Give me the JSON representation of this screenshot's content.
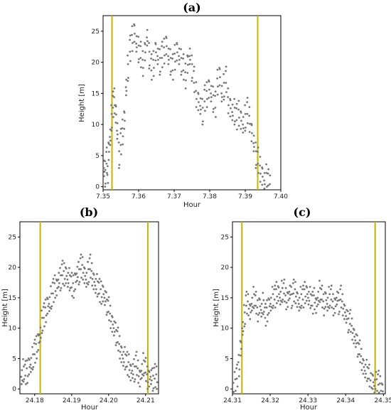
{
  "chart_data": [
    {
      "panel": "(a)",
      "type": "scatter",
      "xlabel": "Hour",
      "ylabel": "Height [m]",
      "xlim": [
        7.35,
        7.4
      ],
      "ylim": [
        -0.5,
        27.5
      ],
      "xticks": [
        7.35,
        7.36,
        7.37,
        7.38,
        7.39,
        7.4
      ],
      "xtick_labels": [
        "7.35",
        "7.36",
        "7.37",
        "7.38",
        "7.39",
        "7.40"
      ],
      "yticks": [
        0,
        5,
        10,
        15,
        20,
        25
      ],
      "ytick_labels": [
        "0",
        "5",
        "10",
        "15",
        "20",
        "25"
      ],
      "grid": false,
      "point_color": "#777777",
      "vlines": [
        7.3525,
        7.3935
      ],
      "vline_color": "#c8b400",
      "x": [
        7.3503,
        7.3506,
        7.351,
        7.3513,
        7.3516,
        7.352,
        7.3524,
        7.3528,
        7.3532,
        7.3536,
        7.354,
        7.3545,
        7.355,
        7.3555,
        7.356,
        7.3565,
        7.357,
        7.3576,
        7.3582,
        7.3588,
        7.3594,
        7.36,
        7.3606,
        7.3612,
        7.3618,
        7.3624,
        7.363,
        7.3636,
        7.3642,
        7.3648,
        7.3654,
        7.366,
        7.3666,
        7.3672,
        7.3678,
        7.3684,
        7.369,
        7.3696,
        7.3702,
        7.3708,
        7.3714,
        7.372,
        7.3726,
        7.3732,
        7.3738,
        7.3744,
        7.375,
        7.3756,
        7.3762,
        7.3768,
        7.3774,
        7.378,
        7.3786,
        7.3792,
        7.3798,
        7.3804,
        7.381,
        7.3816,
        7.3822,
        7.3828,
        7.3834,
        7.384,
        7.3846,
        7.3852,
        7.3858,
        7.3864,
        7.387,
        7.3876,
        7.3882,
        7.3888,
        7.3894,
        7.39,
        7.3906,
        7.3912,
        7.3918,
        7.3924,
        7.393,
        7.3936,
        7.3942,
        7.3948,
        7.3954,
        7.396,
        7.3965,
        7.397
      ],
      "y": [
        3,
        2,
        4,
        1.5,
        6,
        8,
        11,
        13,
        14,
        12,
        9,
        5,
        7,
        9,
        11,
        16,
        19,
        22,
        24,
        25,
        23,
        22,
        21,
        20,
        22,
        24,
        21,
        19,
        20,
        22,
        21,
        20,
        21,
        22,
        23,
        21,
        20,
        19,
        21,
        22,
        21,
        20,
        19,
        18,
        20,
        21,
        19,
        17,
        15,
        14,
        13,
        12,
        14,
        15,
        16,
        15,
        14,
        13,
        17,
        18,
        15,
        16,
        17,
        14,
        13,
        12,
        12,
        11,
        12,
        11,
        10,
        11,
        12,
        11,
        9,
        7,
        5,
        4,
        3,
        2,
        1,
        1.5,
        0.5,
        0
      ],
      "scatter_offsets": [
        0,
        -1.3,
        1.2,
        -0.6,
        2.1,
        -2.0,
        0.7,
        -1.5,
        1.6,
        -0.3,
        2.3,
        -1.8,
        0.4,
        1.8,
        -2.2,
        -0.9,
        1.1,
        -1.7,
        0.9,
        -0.4
      ]
    },
    {
      "panel": "(b)",
      "type": "scatter",
      "xlabel": "Hour",
      "ylabel": "Height [m]",
      "xlim": [
        24.176,
        24.2135
      ],
      "ylim": [
        -0.8,
        27.5
      ],
      "xticks": [
        24.18,
        24.19,
        24.2,
        24.21
      ],
      "xtick_labels": [
        "24.18",
        "24.19",
        "24.20",
        "24.21"
      ],
      "yticks": [
        0,
        5,
        10,
        15,
        20,
        25
      ],
      "ytick_labels": [
        "0",
        "5",
        "10",
        "15",
        "20",
        "25"
      ],
      "grid": false,
      "point_color": "#777777",
      "vlines": [
        24.1815,
        24.2106
      ],
      "vline_color": "#c8b400",
      "x": [
        24.1765,
        24.177,
        24.1775,
        24.178,
        24.1785,
        24.179,
        24.1795,
        24.18,
        24.1805,
        24.181,
        24.1815,
        24.182,
        24.1825,
        24.183,
        24.1835,
        24.184,
        24.1845,
        24.185,
        24.1855,
        24.186,
        24.1865,
        24.187,
        24.1875,
        24.188,
        24.1885,
        24.189,
        24.1895,
        24.19,
        24.1905,
        24.191,
        24.1915,
        24.192,
        24.1925,
        24.193,
        24.1935,
        24.194,
        24.1945,
        24.195,
        24.1955,
        24.196,
        24.1965,
        24.197,
        24.1975,
        24.198,
        24.1985,
        24.199,
        24.1995,
        24.2,
        24.2005,
        24.201,
        24.2015,
        24.202,
        24.2025,
        24.203,
        24.2035,
        24.204,
        24.2045,
        24.205,
        24.2055,
        24.206,
        24.2065,
        24.207,
        24.2075,
        24.208,
        24.2085,
        24.209,
        24.2095,
        24.21,
        24.2105,
        24.211,
        24.2115,
        24.212,
        24.2125,
        24.213
      ],
      "y": [
        2,
        3,
        2.5,
        3,
        4,
        4,
        5,
        6,
        7,
        8,
        9,
        11,
        12,
        13,
        14,
        14,
        15,
        16,
        17,
        17,
        18,
        18,
        19,
        19,
        19,
        18,
        18,
        17,
        17,
        18,
        19,
        19,
        20,
        20,
        19,
        18,
        19,
        20,
        19,
        18,
        17,
        17,
        16,
        16,
        16,
        15,
        14,
        13,
        12,
        11,
        10,
        9,
        8,
        7,
        6,
        5,
        5,
        4,
        4,
        3,
        3,
        3,
        4,
        3,
        2,
        3,
        4,
        3,
        2,
        2,
        2,
        1.5,
        2,
        2
      ],
      "scatter_offsets": [
        0,
        -1.2,
        1.1,
        -0.6,
        1.9,
        -1.8,
        0.7,
        -1.4,
        1.5,
        -0.3,
        2.1,
        -1.7,
        0.4,
        1.7,
        -2.0,
        -0.9,
        1.0,
        -1.6,
        0.8,
        -0.4
      ]
    },
    {
      "panel": "(c)",
      "type": "scatter",
      "xlabel": "Hour",
      "ylabel": "Height [m]",
      "xlim": [
        24.31,
        24.3505
      ],
      "ylim": [
        -0.8,
        27.5
      ],
      "xticks": [
        24.31,
        24.32,
        24.33,
        24.34,
        24.35
      ],
      "xtick_labels": [
        "24.31",
        "24.32",
        "24.33",
        "24.34",
        "24.35"
      ],
      "yticks": [
        0,
        5,
        10,
        15,
        20,
        25
      ],
      "ytick_labels": [
        "0",
        "5",
        "10",
        "15",
        "20",
        "25"
      ],
      "grid": false,
      "point_color": "#777777",
      "vlines": [
        24.3125,
        24.3478
      ],
      "vline_color": "#c8b400",
      "x": [
        24.3102,
        24.3107,
        24.3112,
        24.3117,
        24.3122,
        24.3127,
        24.3132,
        24.3137,
        24.3142,
        24.3147,
        24.3152,
        24.3157,
        24.3162,
        24.3167,
        24.3172,
        24.3177,
        24.3182,
        24.3187,
        24.3192,
        24.3197,
        24.3202,
        24.3207,
        24.3212,
        24.3217,
        24.3222,
        24.3227,
        24.3232,
        24.3237,
        24.3242,
        24.3247,
        24.3252,
        24.3257,
        24.3262,
        24.3267,
        24.3272,
        24.3277,
        24.3282,
        24.3287,
        24.3292,
        24.3297,
        24.3302,
        24.3307,
        24.3312,
        24.3317,
        24.3322,
        24.3327,
        24.3332,
        24.3337,
        24.3342,
        24.3347,
        24.3352,
        24.3357,
        24.3362,
        24.3367,
        24.3372,
        24.3377,
        24.3382,
        24.3387,
        24.3392,
        24.3397,
        24.3402,
        24.3407,
        24.3412,
        24.3417,
        24.3422,
        24.3427,
        24.3432,
        24.3437,
        24.3442,
        24.3447,
        24.3452,
        24.3457,
        24.3462,
        24.3467,
        24.3472,
        24.3477,
        24.3482,
        24.3487,
        24.3492,
        24.3497
      ],
      "y": [
        0,
        1,
        2,
        4,
        7,
        10,
        12,
        14,
        14,
        13,
        14,
        15,
        14,
        13,
        14,
        13,
        14,
        12,
        13,
        14,
        14,
        15,
        15,
        16,
        16,
        15,
        16,
        16,
        15,
        15,
        16,
        15,
        16,
        16,
        15,
        14,
        15,
        15,
        16,
        16,
        15,
        15,
        14,
        15,
        14,
        15,
        16,
        15,
        14,
        15,
        14,
        15,
        15,
        14,
        14,
        15,
        14,
        15,
        14,
        13,
        12,
        11,
        11,
        10,
        9,
        8,
        7,
        6,
        5,
        4,
        3,
        3,
        2,
        1,
        1.5,
        0.5,
        1,
        1,
        0.5,
        0
      ],
      "scatter_offsets": [
        0,
        -1.1,
        1.0,
        -0.5,
        1.8,
        -1.7,
        0.6,
        -1.3,
        1.4,
        -0.3,
        2.0,
        -1.6,
        0.4,
        1.6,
        -1.9,
        -0.8,
        0.9,
        -1.5,
        0.7,
        -0.4
      ]
    }
  ]
}
